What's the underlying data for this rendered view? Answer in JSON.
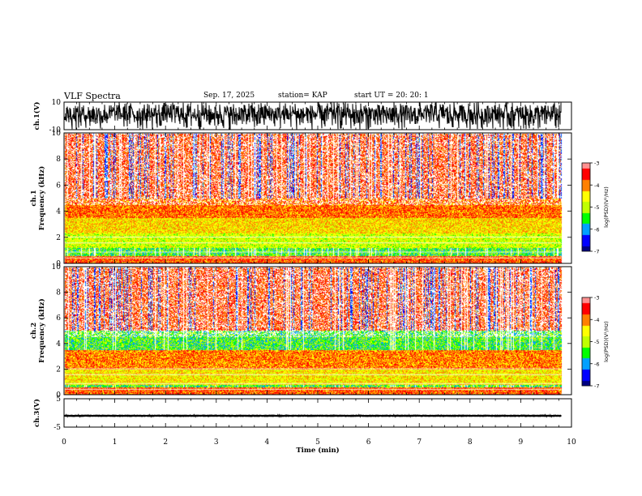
{
  "header": {
    "title": "VLF Spectra",
    "date": "Sep. 17, 2025",
    "station": "station= KAP",
    "start_ut": "start  UT =  20: 20: 1"
  },
  "chart_data": [
    {
      "type": "line",
      "id": "ch1-waveform",
      "ylabel": "ch.1(V)",
      "ylim": [
        -10,
        10
      ],
      "yticklabels": [
        "10",
        "-10"
      ],
      "xlim": [
        0,
        10
      ],
      "data_end_min": 9.8,
      "signal": "noise",
      "amplitude_v": [
        -10,
        10
      ]
    },
    {
      "type": "heatmap",
      "id": "ch1-spectrogram",
      "ylabel": "ch.1\nFrequency (kHz)",
      "ylim": [
        0,
        10
      ],
      "yticklabels": [
        "0",
        "2",
        "4",
        "6",
        "8",
        "10"
      ],
      "xlim": [
        0,
        10
      ],
      "data_end_min": 9.8,
      "colorbar": {
        "label": "log(PSD)(V²/Hz)",
        "range": [
          -7,
          -3
        ],
        "ticklabels": [
          "-3",
          "-4",
          "-5",
          "-6",
          "-7"
        ]
      },
      "bands_khz": [
        {
          "from": 0.0,
          "to": 0.6,
          "level": -3.8
        },
        {
          "from": 1.2,
          "to": 2.3,
          "level": -4.8
        },
        {
          "from": 2.3,
          "to": 3.5,
          "level": -4.4
        },
        {
          "from": 3.5,
          "to": 5.0,
          "level": -3.9
        }
      ]
    },
    {
      "type": "heatmap",
      "id": "ch2-spectrogram",
      "ylabel": "ch.2\nFrequency (kHz)",
      "ylim": [
        0,
        10
      ],
      "yticklabels": [
        "0",
        "2",
        "4",
        "6",
        "8",
        "10"
      ],
      "xlim": [
        0,
        10
      ],
      "data_end_min": 9.8,
      "colorbar": {
        "label": "log(PSD)(V²/Hz)",
        "range": [
          -7,
          -3
        ],
        "ticklabels": [
          "-3",
          "-4",
          "-5",
          "-6",
          "-7"
        ]
      },
      "bands_khz": [
        {
          "from": 0.0,
          "to": 0.6,
          "level": -3.8
        },
        {
          "from": 0.8,
          "to": 2.0,
          "level": -4.5
        },
        {
          "from": 2.0,
          "to": 3.5,
          "level": -4.0
        }
      ]
    },
    {
      "type": "line",
      "id": "ch3-waveform",
      "ylabel": "ch.3(V)",
      "ylim": [
        -5,
        5
      ],
      "yticklabels": [
        "5",
        "-5"
      ],
      "xlim": [
        0,
        10
      ],
      "data_end_min": 9.8,
      "signal": "dc-offset",
      "offset_v": -1,
      "amplitude_v": [
        -1.4,
        -0.6
      ]
    }
  ],
  "xaxis": {
    "label": "Time (min)",
    "ticklabels": [
      "0",
      "1",
      "2",
      "3",
      "4",
      "5",
      "6",
      "7",
      "8",
      "9",
      "10"
    ]
  },
  "colors": {
    "colormap": [
      "#000080",
      "#0000ff",
      "#00a0ff",
      "#00ff00",
      "#c0ff00",
      "#ffff00",
      "#ff8000",
      "#ff0000",
      "#ff9090",
      "#ffffff"
    ]
  }
}
